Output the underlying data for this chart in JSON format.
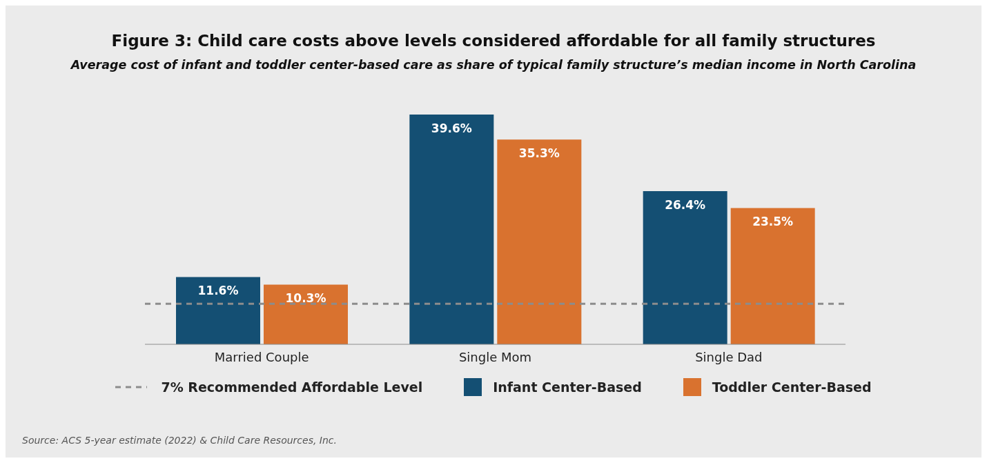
{
  "chart_data": {
    "type": "bar",
    "title": "Figure 3: Child care costs above levels considered affordable for all family structures",
    "subtitle": "Average cost of infant and toddler center-based care as share of typical family structure’s median income in North Carolina",
    "categories": [
      "Married Couple",
      "Single Mom",
      "Single Dad"
    ],
    "series": [
      {
        "name": "Infant Center-Based",
        "color": "#144f73",
        "values": [
          11.6,
          39.6,
          26.4
        ],
        "value_labels": [
          "11.6%",
          "39.6%",
          "26.4%"
        ]
      },
      {
        "name": "Toddler Center-Based",
        "color": "#d9722f",
        "values": [
          10.3,
          35.3,
          23.5
        ],
        "value_labels": [
          "10.3%",
          "35.3%",
          "23.5%"
        ]
      }
    ],
    "ref_lines": [
      {
        "axis": "y",
        "value": 7,
        "label": "7% Recommended Affordable Level",
        "color": "#8c8c8c",
        "line_style": "dashed"
      }
    ],
    "legend": "bottom",
    "annotations": [
      "Source: ACS 5-year estimate (2022) & Child Care Resources, Inc."
    ]
  }
}
